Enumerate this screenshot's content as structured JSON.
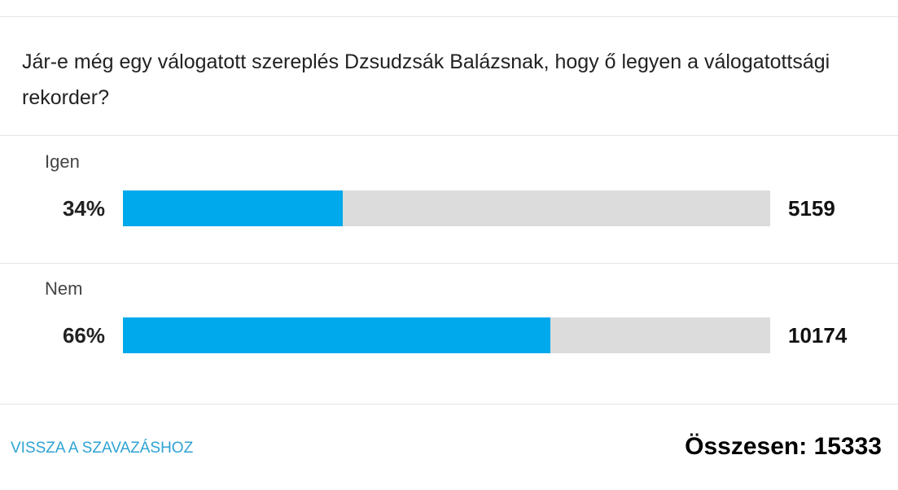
{
  "poll": {
    "question": "Jár-e még egy válogatott szereplés Dzsudzsák Balázsnak, hogy ő legyen a válogatottsági rekorder?",
    "options": [
      {
        "label": "Igen",
        "percent": 34,
        "percent_label": "34%",
        "votes": 5159
      },
      {
        "label": "Nem",
        "percent": 66,
        "percent_label": "66%",
        "votes": 10174
      }
    ],
    "back_link": "VISSZA A SZAVAZÁSHOZ",
    "total_label": "Összesen:",
    "total": 15333,
    "bar_color": "#00a8ec",
    "track_color": "#dcdcdc"
  }
}
